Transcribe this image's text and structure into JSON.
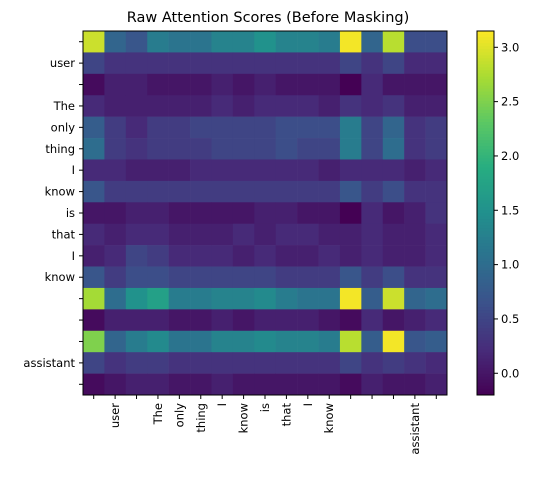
{
  "chart_data": {
    "type": "heatmap",
    "title": "Raw Attention Scores (Before Masking)",
    "colormap": "viridis",
    "vmin": -0.2,
    "vmax": 3.15,
    "tokens": [
      "",
      "user",
      "",
      "The",
      "only",
      "thing",
      "I",
      "know",
      "is",
      "that",
      "I",
      "know",
      "",
      "",
      "",
      "assistant",
      ""
    ],
    "colorbar_ticks": [
      {
        "value": 3.0,
        "label": "3.0"
      },
      {
        "value": 2.5,
        "label": "2.5"
      },
      {
        "value": 2.0,
        "label": "2.0"
      },
      {
        "value": 1.5,
        "label": "1.5"
      },
      {
        "value": 1.0,
        "label": "1.0"
      },
      {
        "value": 0.5,
        "label": "0.5"
      },
      {
        "value": 0.0,
        "label": "0.0"
      }
    ],
    "values": [
      [
        2.9,
        0.9,
        0.7,
        1.2,
        1.1,
        1.1,
        1.3,
        1.3,
        1.5,
        1.3,
        1.3,
        1.2,
        3.1,
        0.9,
        2.8,
        0.6,
        0.6
      ],
      [
        0.5,
        0.3,
        0.3,
        0.3,
        0.3,
        0.3,
        0.3,
        0.3,
        0.3,
        0.3,
        0.3,
        0.3,
        0.5,
        0.3,
        0.5,
        0.2,
        0.2
      ],
      [
        -0.1,
        0.1,
        0.1,
        0.0,
        0.0,
        0.0,
        0.1,
        0.0,
        0.1,
        0.0,
        0.0,
        0.0,
        -0.2,
        0.2,
        0.0,
        0.0,
        0.0
      ],
      [
        0.2,
        0.1,
        0.1,
        0.1,
        0.1,
        0.1,
        0.2,
        0.1,
        0.2,
        0.2,
        0.2,
        0.1,
        0.3,
        0.2,
        0.3,
        0.1,
        0.1
      ],
      [
        0.8,
        0.4,
        0.2,
        0.4,
        0.4,
        0.5,
        0.5,
        0.5,
        0.5,
        0.6,
        0.6,
        0.6,
        1.2,
        0.5,
        0.9,
        0.3,
        0.4
      ],
      [
        1.0,
        0.4,
        0.3,
        0.4,
        0.4,
        0.4,
        0.5,
        0.5,
        0.5,
        0.6,
        0.5,
        0.5,
        1.2,
        0.5,
        1.0,
        0.3,
        0.4
      ],
      [
        0.2,
        0.2,
        0.1,
        0.1,
        0.1,
        0.2,
        0.2,
        0.2,
        0.2,
        0.2,
        0.2,
        0.1,
        0.2,
        0.2,
        0.2,
        0.1,
        0.2
      ],
      [
        0.7,
        0.4,
        0.4,
        0.4,
        0.4,
        0.4,
        0.4,
        0.4,
        0.4,
        0.4,
        0.4,
        0.4,
        0.7,
        0.4,
        0.6,
        0.3,
        0.3
      ],
      [
        0.0,
        0.0,
        0.1,
        0.1,
        0.0,
        0.0,
        0.0,
        0.0,
        0.1,
        0.1,
        0.0,
        0.0,
        -0.2,
        0.2,
        0.0,
        0.1,
        0.3
      ],
      [
        0.2,
        0.1,
        0.2,
        0.2,
        0.1,
        0.1,
        0.1,
        0.2,
        0.1,
        0.2,
        0.2,
        0.1,
        0.1,
        0.2,
        0.1,
        0.1,
        0.2
      ],
      [
        0.1,
        0.2,
        0.5,
        0.4,
        0.2,
        0.2,
        0.2,
        0.1,
        0.2,
        0.1,
        0.1,
        0.2,
        0.1,
        0.2,
        0.1,
        0.1,
        0.2
      ],
      [
        0.7,
        0.4,
        0.6,
        0.6,
        0.5,
        0.5,
        0.5,
        0.5,
        0.5,
        0.4,
        0.4,
        0.4,
        0.7,
        0.4,
        0.6,
        0.3,
        0.3
      ],
      [
        2.7,
        1.0,
        1.5,
        1.7,
        1.2,
        1.2,
        1.3,
        1.3,
        1.4,
        1.2,
        1.1,
        1.1,
        3.1,
        0.8,
        2.9,
        0.9,
        1.0
      ],
      [
        -0.1,
        0.1,
        0.1,
        0.1,
        0.0,
        0.0,
        0.1,
        0.0,
        0.1,
        0.1,
        0.1,
        0.0,
        -0.1,
        0.2,
        0.0,
        0.1,
        0.2
      ],
      [
        2.5,
        0.9,
        1.2,
        1.4,
        1.1,
        1.1,
        1.3,
        1.3,
        1.4,
        1.3,
        1.3,
        1.2,
        2.8,
        0.8,
        3.1,
        0.7,
        0.8
      ],
      [
        0.5,
        0.3,
        0.4,
        0.4,
        0.3,
        0.3,
        0.3,
        0.3,
        0.3,
        0.3,
        0.3,
        0.3,
        0.5,
        0.3,
        0.4,
        0.3,
        0.2
      ],
      [
        -0.1,
        0.0,
        0.1,
        0.1,
        0.0,
        0.0,
        0.1,
        0.0,
        0.0,
        0.0,
        0.0,
        0.0,
        -0.1,
        0.1,
        0.0,
        0.0,
        0.1
      ]
    ]
  }
}
